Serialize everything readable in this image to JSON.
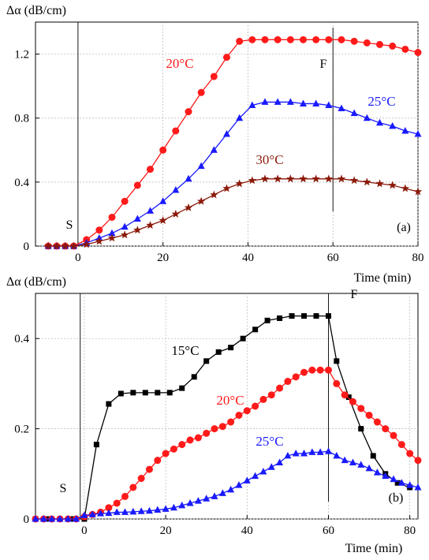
{
  "chart_data": [
    {
      "type": "line",
      "panel_label": "(a)",
      "ylabel": "Δα (dB/cm)",
      "xlabel": "Time (min)",
      "xlim": [
        -10,
        80
      ],
      "ylim": [
        0,
        1.4
      ],
      "xticks": [
        0,
        20,
        40,
        60,
        80
      ],
      "yticks": [
        0,
        0.4,
        0.8,
        1.2
      ],
      "xtick_labels": [
        "0",
        "20",
        "40",
        "60",
        "80"
      ],
      "ytick_labels": [
        "0",
        "0.4",
        "0.8",
        "1.2"
      ],
      "grid": true,
      "vlines": [
        {
          "x": 0,
          "label": "S"
        },
        {
          "x": 60,
          "label": "F"
        }
      ],
      "series": [
        {
          "name": "20°C",
          "color": "#ff1a1a",
          "marker": "circle",
          "x": [
            -7,
            -5,
            -3,
            -1,
            2,
            5,
            8,
            11,
            14,
            17,
            20,
            23,
            26,
            29,
            32,
            35,
            38,
            41,
            44,
            47,
            50,
            53,
            56,
            59,
            62,
            65,
            68,
            71,
            74,
            77,
            80
          ],
          "y": [
            0,
            0,
            0,
            0,
            0.04,
            0.1,
            0.18,
            0.28,
            0.38,
            0.48,
            0.6,
            0.72,
            0.84,
            0.96,
            1.06,
            1.18,
            1.28,
            1.29,
            1.29,
            1.29,
            1.29,
            1.29,
            1.29,
            1.29,
            1.29,
            1.28,
            1.27,
            1.26,
            1.25,
            1.23,
            1.21
          ]
        },
        {
          "name": "25°C",
          "color": "#1a1aff",
          "marker": "triangle",
          "x": [
            -7,
            -5,
            -3,
            -1,
            2,
            5,
            8,
            11,
            14,
            17,
            20,
            23,
            26,
            29,
            32,
            35,
            38,
            41,
            44,
            47,
            50,
            53,
            56,
            59,
            62,
            65,
            68,
            71,
            74,
            77,
            80
          ],
          "y": [
            0,
            0,
            0,
            0,
            0.02,
            0.05,
            0.08,
            0.12,
            0.17,
            0.22,
            0.28,
            0.35,
            0.42,
            0.5,
            0.6,
            0.7,
            0.8,
            0.88,
            0.9,
            0.9,
            0.9,
            0.89,
            0.89,
            0.88,
            0.86,
            0.83,
            0.8,
            0.77,
            0.75,
            0.72,
            0.7
          ]
        },
        {
          "name": "30°C",
          "color": "#8b1a0a",
          "marker": "star",
          "x": [
            -7,
            -5,
            -3,
            -1,
            2,
            5,
            8,
            11,
            14,
            17,
            20,
            23,
            26,
            29,
            32,
            35,
            38,
            41,
            44,
            47,
            50,
            53,
            56,
            59,
            62,
            65,
            68,
            71,
            74,
            77,
            80
          ],
          "y": [
            0,
            0,
            0,
            0,
            0.01,
            0.03,
            0.05,
            0.07,
            0.1,
            0.13,
            0.16,
            0.2,
            0.24,
            0.28,
            0.32,
            0.36,
            0.39,
            0.41,
            0.42,
            0.42,
            0.42,
            0.42,
            0.42,
            0.42,
            0.42,
            0.41,
            0.4,
            0.39,
            0.38,
            0.36,
            0.34
          ]
        }
      ]
    },
    {
      "type": "line",
      "panel_label": "(b)",
      "ylabel": "Δα (dB/cm)",
      "xlabel": "Time (min)",
      "xlim": [
        -12,
        82
      ],
      "ylim": [
        0,
        0.5
      ],
      "xticks": [
        0,
        20,
        40,
        60,
        80
      ],
      "yticks": [
        0,
        0.2,
        0.4
      ],
      "xtick_labels": [
        "0",
        "20",
        "40",
        "60",
        "80"
      ],
      "ytick_labels": [
        "0",
        "0.2",
        "0.4"
      ],
      "grid": true,
      "vlines": [
        {
          "x": -1,
          "label": "S"
        },
        {
          "x": 60,
          "label": "F"
        }
      ],
      "series": [
        {
          "name": "15°C",
          "color": "#000000",
          "marker": "square",
          "x": [
            -12,
            -9,
            -6,
            -3,
            0,
            3,
            6,
            9,
            12,
            15,
            18,
            21,
            24,
            27,
            30,
            33,
            36,
            39,
            42,
            45,
            48,
            51,
            54,
            57,
            60,
            62,
            65,
            68,
            71,
            74,
            77,
            80
          ],
          "y": [
            0,
            0,
            0,
            0,
            0,
            0.165,
            0.255,
            0.278,
            0.28,
            0.28,
            0.28,
            0.28,
            0.29,
            0.315,
            0.35,
            0.37,
            0.38,
            0.4,
            0.42,
            0.44,
            0.445,
            0.45,
            0.45,
            0.45,
            0.45,
            0.35,
            0.27,
            0.2,
            0.14,
            0.1,
            0.08,
            0.07
          ]
        },
        {
          "name": "20°C",
          "color": "#ff1a1a",
          "marker": "circle",
          "x": [
            -12,
            -10,
            -8,
            -6,
            -4,
            -2,
            0,
            2,
            4,
            6,
            8,
            10,
            12,
            14,
            16,
            18,
            20,
            22,
            24,
            26,
            28,
            30,
            32,
            34,
            36,
            38,
            40,
            42,
            44,
            46,
            48,
            50,
            52,
            54,
            56,
            58,
            60,
            62,
            64,
            66,
            68,
            70,
            72,
            74,
            76,
            78,
            80,
            82
          ],
          "y": [
            0,
            0,
            0,
            0,
            0,
            0,
            0.005,
            0.01,
            0.015,
            0.025,
            0.035,
            0.05,
            0.07,
            0.09,
            0.11,
            0.13,
            0.145,
            0.155,
            0.165,
            0.175,
            0.18,
            0.19,
            0.2,
            0.205,
            0.215,
            0.23,
            0.24,
            0.25,
            0.265,
            0.275,
            0.29,
            0.305,
            0.315,
            0.325,
            0.33,
            0.33,
            0.33,
            0.3,
            0.275,
            0.26,
            0.245,
            0.23,
            0.215,
            0.2,
            0.185,
            0.165,
            0.145,
            0.13
          ]
        },
        {
          "name": "25°C",
          "color": "#1a1aff",
          "marker": "triangle",
          "x": [
            -12,
            -10,
            -8,
            -6,
            -4,
            -2,
            0,
            2,
            4,
            6,
            8,
            10,
            12,
            14,
            16,
            18,
            20,
            22,
            24,
            26,
            28,
            30,
            32,
            34,
            36,
            38,
            40,
            42,
            44,
            46,
            48,
            50,
            52,
            54,
            56,
            58,
            60,
            62,
            64,
            66,
            68,
            70,
            72,
            74,
            76,
            78,
            80,
            82
          ],
          "y": [
            0,
            0,
            0,
            0,
            0,
            0,
            0.008,
            0.01,
            0.012,
            0.013,
            0.015,
            0.015,
            0.016,
            0.017,
            0.018,
            0.02,
            0.022,
            0.025,
            0.03,
            0.035,
            0.04,
            0.045,
            0.05,
            0.057,
            0.065,
            0.075,
            0.085,
            0.095,
            0.105,
            0.115,
            0.125,
            0.14,
            0.145,
            0.145,
            0.148,
            0.148,
            0.15,
            0.14,
            0.13,
            0.125,
            0.12,
            0.112,
            0.103,
            0.095,
            0.088,
            0.08,
            0.075,
            0.07
          ]
        }
      ]
    }
  ]
}
